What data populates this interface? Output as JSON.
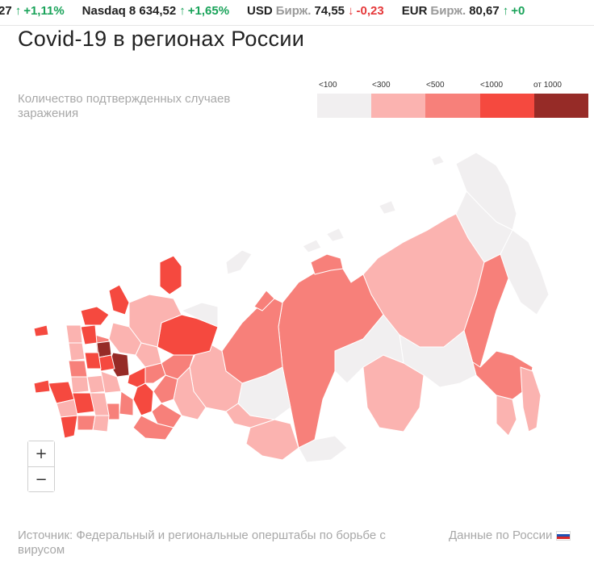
{
  "ticker": [
    {
      "name": "",
      "sub": "",
      "value": "27",
      "dir": "up",
      "change": "+1,11%"
    },
    {
      "name": "Nasdaq",
      "sub": "",
      "value": "8 634,52",
      "dir": "up",
      "change": "+1,65%"
    },
    {
      "name": "USD",
      "sub": "Бирж.",
      "value": "74,55",
      "dir": "down",
      "change": "-0,23"
    },
    {
      "name": "EUR",
      "sub": "Бирж.",
      "value": "80,67",
      "dir": "up",
      "change": "+0"
    }
  ],
  "title": "Covid-19 в регионах России",
  "subtitle": "Количество подтвержденных случаев заражения",
  "legend": [
    {
      "label": "<100",
      "color": "#f1eff0"
    },
    {
      "label": "<300",
      "color": "#fbb3b0"
    },
    {
      "label": "<500",
      "color": "#f7807a"
    },
    {
      "label": "<1000",
      "color": "#f5493f"
    },
    {
      "label": "от 1000",
      "color": "#962b27"
    }
  ],
  "zoom": {
    "in": "+",
    "out": "−"
  },
  "source": "Источник: Федеральный и региональные оперштабы по борьбе с вирусом",
  "russia_link": "Данные по России",
  "icons": {
    "up": "↑",
    "down": "↓",
    "flag": "russia-flag-icon"
  },
  "colors": {
    "up": "#1aa35a",
    "down": "#e5393b",
    "region_border": "#ffffff"
  }
}
